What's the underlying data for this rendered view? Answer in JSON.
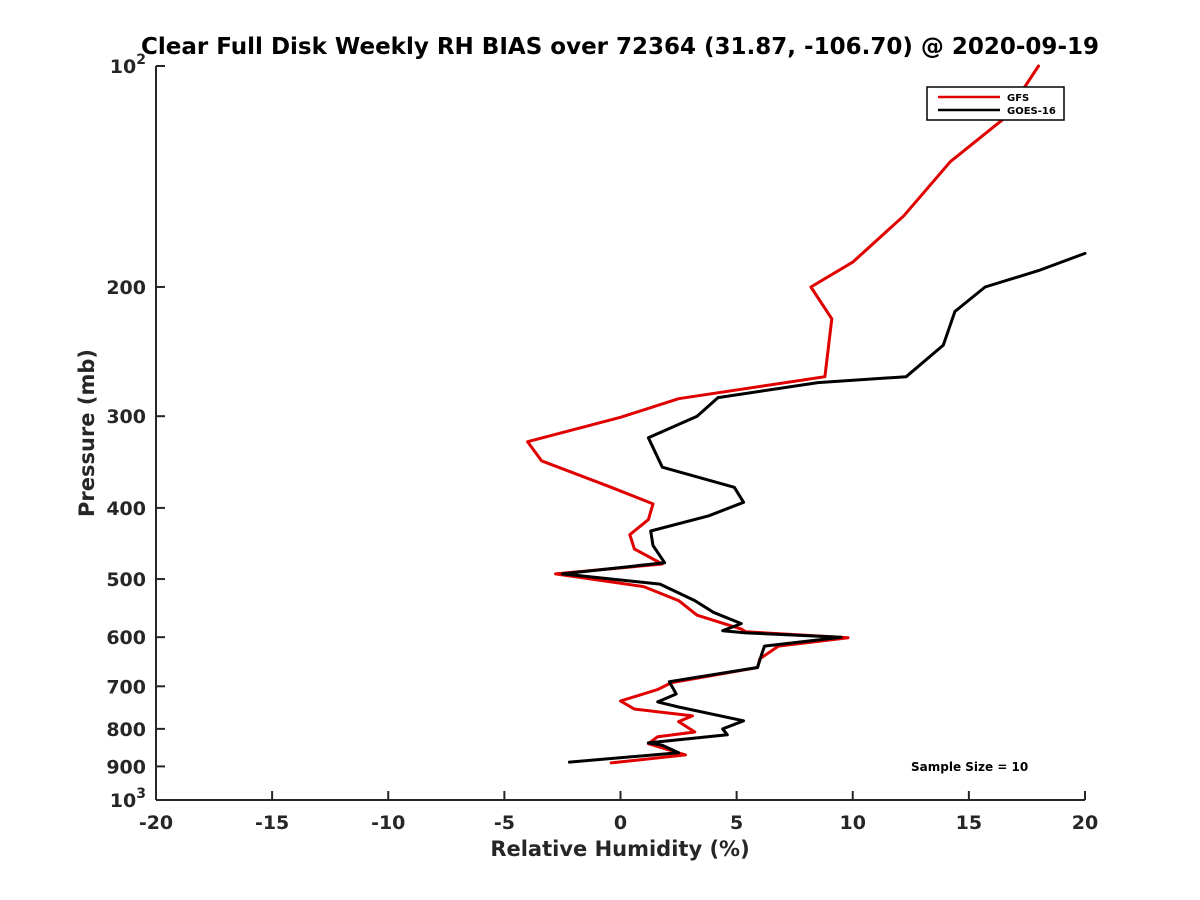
{
  "chart_data": {
    "type": "line",
    "title": "Clear Full Disk Weekly RH BIAS over 72364 (31.87, -106.70) @ 2020-09-19",
    "xlabel": "Relative Humidity (%)",
    "ylabel": "Pressure (mb)",
    "xlim": [
      -20,
      20
    ],
    "ylim": [
      100,
      1000
    ],
    "y_scale": "log",
    "y_reversed": true,
    "x_ticks": [
      "-20",
      "-15",
      "-10",
      "-5",
      "0",
      "5",
      "10",
      "15",
      "20"
    ],
    "y_ticks": [
      "200",
      "300",
      "400",
      "500",
      "600",
      "700",
      "800",
      "900"
    ],
    "y_tick_top": {
      "base": "10",
      "exp": "2"
    },
    "y_tick_bottom": {
      "base": "10",
      "exp": "3"
    },
    "grid": false,
    "legend_position": "top-right",
    "annotation": "Sample Size = 10",
    "series": [
      {
        "name": "GFS",
        "color": "#e00000",
        "points": [
          [
            18.0,
            100
          ],
          [
            16.5,
            118
          ],
          [
            14.2,
            135
          ],
          [
            12.2,
            160
          ],
          [
            10.0,
            185
          ],
          [
            8.2,
            200
          ],
          [
            9.1,
            221
          ],
          [
            8.8,
            265
          ],
          [
            2.5,
            284
          ],
          [
            0.0,
            301
          ],
          [
            -4.0,
            325
          ],
          [
            -3.4,
            345
          ],
          [
            -0.4,
            375
          ],
          [
            1.4,
            395
          ],
          [
            1.2,
            415
          ],
          [
            0.4,
            435
          ],
          [
            0.6,
            455
          ],
          [
            1.8,
            477
          ],
          [
            -2.8,
            492
          ],
          [
            1.0,
            512
          ],
          [
            2.5,
            535
          ],
          [
            3.3,
            560
          ],
          [
            5.2,
            585
          ],
          [
            5.4,
            590
          ],
          [
            9.8,
            601
          ],
          [
            6.8,
            617
          ],
          [
            6.0,
            642
          ],
          [
            5.9,
            660
          ],
          [
            2.2,
            692
          ],
          [
            1.6,
            707
          ],
          [
            0.0,
            733
          ],
          [
            0.6,
            752
          ],
          [
            3.1,
            768
          ],
          [
            2.5,
            782
          ],
          [
            3.2,
            808
          ],
          [
            1.6,
            820
          ],
          [
            1.2,
            838
          ],
          [
            2.8,
            868
          ],
          [
            -0.4,
            890
          ]
        ]
      },
      {
        "name": "GOES-16",
        "color": "#000000",
        "points": [
          [
            20.0,
            180
          ],
          [
            18.0,
            190
          ],
          [
            15.7,
            200
          ],
          [
            14.4,
            216
          ],
          [
            13.9,
            240
          ],
          [
            12.3,
            265
          ],
          [
            8.5,
            270
          ],
          [
            4.2,
            283
          ],
          [
            3.3,
            300
          ],
          [
            1.2,
            321
          ],
          [
            1.8,
            352
          ],
          [
            4.9,
            375
          ],
          [
            5.3,
            393
          ],
          [
            3.8,
            410
          ],
          [
            1.3,
            430
          ],
          [
            1.4,
            450
          ],
          [
            1.9,
            475
          ],
          [
            -2.5,
            492
          ],
          [
            1.7,
            508
          ],
          [
            3.2,
            535
          ],
          [
            4.0,
            555
          ],
          [
            5.2,
            575
          ],
          [
            4.4,
            588
          ],
          [
            5.4,
            592
          ],
          [
            9.5,
            600
          ],
          [
            6.2,
            617
          ],
          [
            6.1,
            630
          ],
          [
            5.9,
            660
          ],
          [
            2.1,
            690
          ],
          [
            2.4,
            717
          ],
          [
            1.6,
            735
          ],
          [
            2.5,
            747
          ],
          [
            5.3,
            780
          ],
          [
            4.4,
            800
          ],
          [
            4.6,
            815
          ],
          [
            1.2,
            836
          ],
          [
            1.8,
            842
          ],
          [
            2.5,
            862
          ],
          [
            -2.2,
            888
          ]
        ]
      }
    ]
  }
}
